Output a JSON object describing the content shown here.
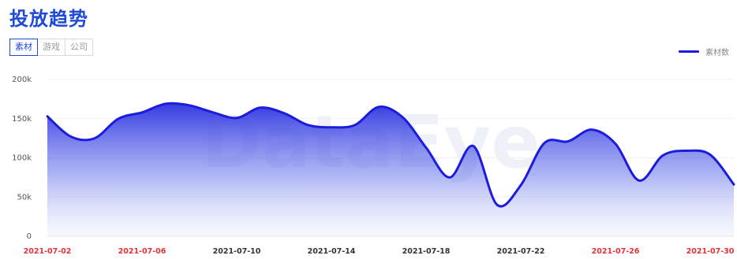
{
  "page": {
    "title": "投放趋势",
    "tabs": [
      {
        "label": "素材",
        "active": true
      },
      {
        "label": "游戏",
        "active": false
      },
      {
        "label": "公司",
        "active": false
      }
    ],
    "watermark": "DataEye"
  },
  "chart_data": {
    "type": "area",
    "title": "",
    "xlabel": "",
    "ylabel": "",
    "ylim": [
      0,
      200000
    ],
    "yticks": [
      0,
      50000,
      100000,
      150000,
      200000
    ],
    "ytick_labels": [
      "0",
      "50k",
      "100k",
      "150k",
      "200k"
    ],
    "grid": true,
    "legend": "top-right",
    "x": [
      "2021-07-02",
      "2021-07-03",
      "2021-07-04",
      "2021-07-05",
      "2021-07-06",
      "2021-07-07",
      "2021-07-08",
      "2021-07-09",
      "2021-07-10",
      "2021-07-11",
      "2021-07-12",
      "2021-07-13",
      "2021-07-14",
      "2021-07-15",
      "2021-07-16",
      "2021-07-17",
      "2021-07-18",
      "2021-07-19",
      "2021-07-20",
      "2021-07-21",
      "2021-07-22",
      "2021-07-23",
      "2021-07-24",
      "2021-07-25",
      "2021-07-26",
      "2021-07-27",
      "2021-07-28",
      "2021-07-29",
      "2021-07-30",
      "2021-07-31"
    ],
    "x_tick_labels": [
      {
        "label": "2021-07-02",
        "color": "#e0333a"
      },
      {
        "label": "2021-07-06",
        "color": "#e0333a"
      },
      {
        "label": "2021-07-10",
        "color": "#333333"
      },
      {
        "label": "2021-07-14",
        "color": "#333333"
      },
      {
        "label": "2021-07-18",
        "color": "#333333"
      },
      {
        "label": "2021-07-22",
        "color": "#333333"
      },
      {
        "label": "2021-07-26",
        "color": "#e0333a"
      },
      {
        "label": "2021-07-30",
        "color": "#e0333a"
      }
    ],
    "series": [
      {
        "name": "素材数",
        "color": "#1c1cdc",
        "values": [
          153000,
          127000,
          125000,
          150000,
          158000,
          169000,
          167000,
          158000,
          151000,
          164000,
          157000,
          142000,
          139000,
          142000,
          165000,
          152000,
          113000,
          75000,
          115000,
          40000,
          65000,
          119000,
          121000,
          136000,
          118000,
          71000,
          103000,
          109000,
          104000,
          66000
        ]
      }
    ]
  }
}
